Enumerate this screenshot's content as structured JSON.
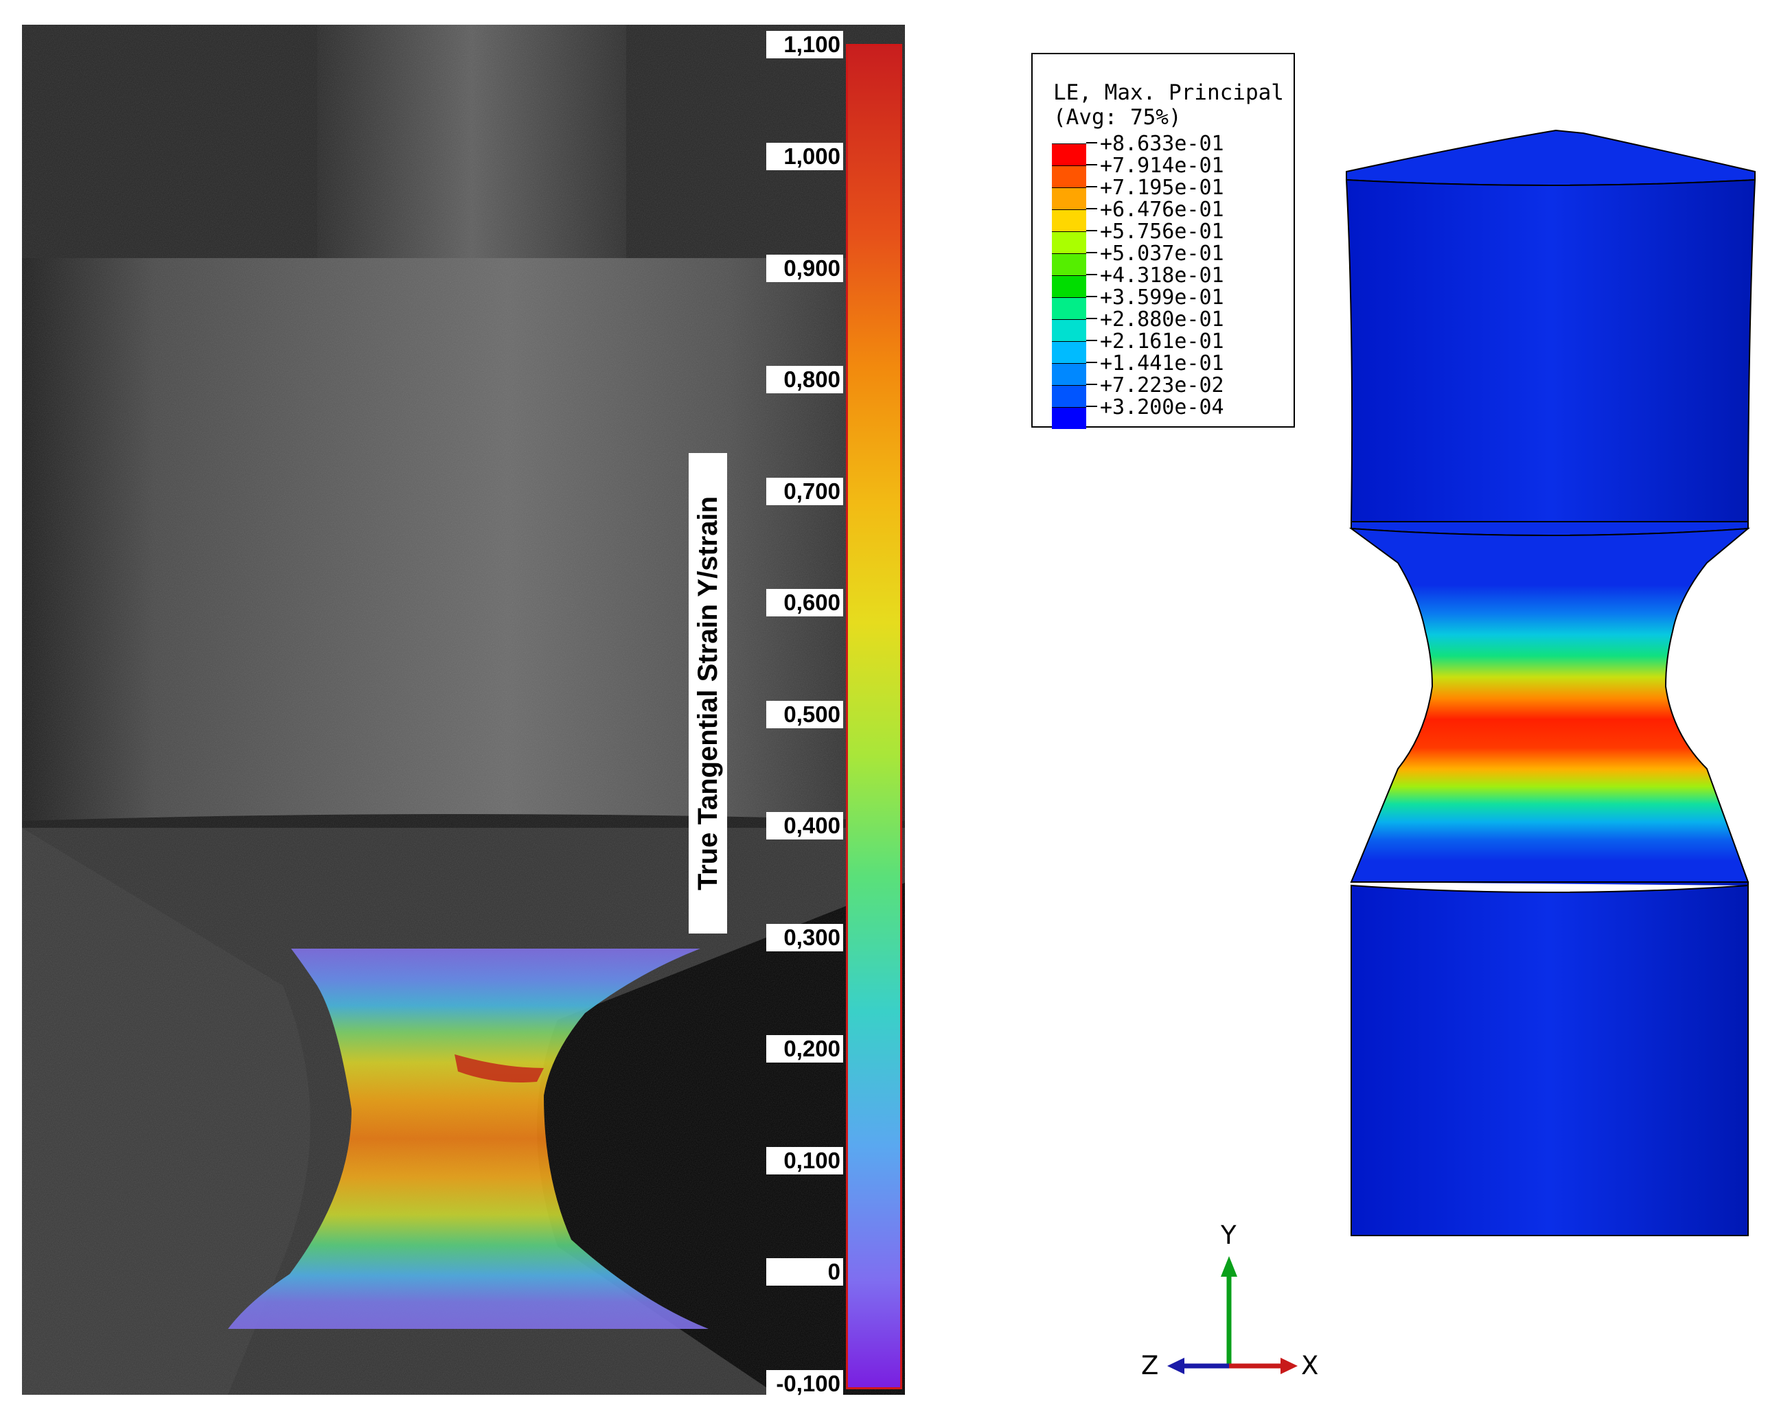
{
  "dic_panel": {
    "axis_title": "True Tangential Strain Y/strain",
    "ticks": [
      "1,100",
      "1,000",
      "0,900",
      "0,800",
      "0,700",
      "0,600",
      "0,500",
      "0,400",
      "0,300",
      "0,200",
      "0,100",
      "0",
      "-0,100"
    ]
  },
  "fem_panel": {
    "legend": {
      "title_line1": "LE, Max. Principal",
      "title_line2": "(Avg: 75%)",
      "values": [
        "+8.633e-01",
        "+7.914e-01",
        "+7.195e-01",
        "+6.476e-01",
        "+5.756e-01",
        "+5.037e-01",
        "+4.318e-01",
        "+3.599e-01",
        "+2.880e-01",
        "+2.161e-01",
        "+1.441e-01",
        "+7.223e-02",
        "+3.200e-04"
      ],
      "colors": [
        "#ff0000",
        "#ff5500",
        "#ffa500",
        "#ffd700",
        "#aaff00",
        "#55ee00",
        "#00dd00",
        "#00ee88",
        "#00e0d0",
        "#00bbff",
        "#0088ff",
        "#0055ff",
        "#0000ff"
      ]
    },
    "triad": {
      "y_label": "Y",
      "z_label": "Z",
      "x_label": "X"
    }
  }
}
